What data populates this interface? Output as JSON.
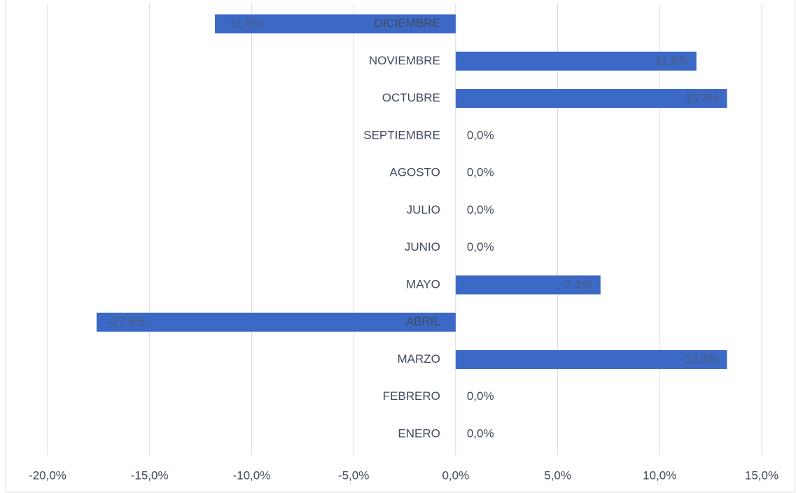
{
  "chart_data": {
    "type": "bar",
    "orientation": "horizontal",
    "categories": [
      "ENERO",
      "FEBRERO",
      "MARZO",
      "ABRIL",
      "MAYO",
      "JUNIO",
      "JULIO",
      "AGOSTO",
      "SEPTIEMBRE",
      "OCTUBRE",
      "NOVIEMBRE",
      "DICIEMBRE"
    ],
    "values": [
      0,
      0,
      13.3,
      -17.6,
      7.1,
      0,
      0,
      0,
      0,
      13.3,
      11.8,
      -11.8
    ],
    "value_labels": [
      "0,0%",
      "0,0%",
      "13,3%",
      "-17,6%",
      "7,1%",
      "0,0%",
      "0,0%",
      "0,0%",
      "0,0%",
      "13,3%",
      "11,8%",
      "-11,8%"
    ],
    "color": "#3d69c6",
    "xlim": [
      -20,
      15
    ],
    "xticks": [
      {
        "value": -20,
        "label": "-20,0%"
      },
      {
        "value": -15,
        "label": "-15,0%"
      },
      {
        "value": -10,
        "label": "-10,0%"
      },
      {
        "value": -5,
        "label": "-5,0%"
      },
      {
        "value": 0,
        "label": "0,0%"
      },
      {
        "value": 5,
        "label": "5,0%"
      },
      {
        "value": 10,
        "label": "10,0%"
      },
      {
        "value": 15,
        "label": "15,0%"
      }
    ],
    "grid": true
  }
}
